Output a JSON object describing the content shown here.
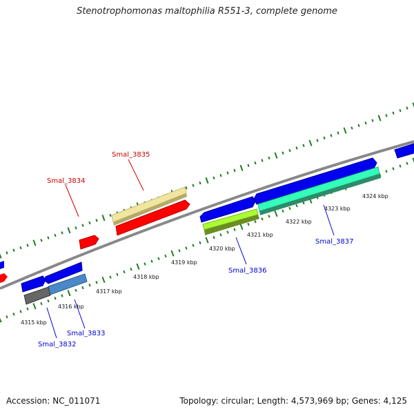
{
  "header": {
    "title": "Stenotrophomonas maltophilia R551-3, complete genome"
  },
  "footer": {
    "accession": "Accession: NC_011071",
    "summary": "Topology: circular; Length: 4,573,969 bp; Genes: 4,125"
  },
  "colors": {
    "backbone": "#8c8c8c",
    "ticks": "#1f7a1f",
    "forward_label": "#cc0000",
    "reverse_label": "#0000cc",
    "red_gene": "#ff0000",
    "blue_gene": "#0000ee",
    "pale_yellow_gene": "#f0e6a0",
    "cyan_gene": "#33ffbb",
    "lime_gene": "#aaff33",
    "steel_blue_gene": "#4a88c8",
    "gray_gene": "#666666"
  },
  "scale_labels": [
    "4315 kbp",
    "4316 kbp",
    "4317 kbp",
    "4318 kbp",
    "4319 kbp",
    "4320 kbp",
    "4321 kbp",
    "4322 kbp",
    "4323 kbp",
    "4324 kbp"
  ],
  "gene_labels": {
    "smal_3832": "Smal_3832",
    "smal_3833": "Smal_3833",
    "smal_3834": "Smal_3834",
    "smal_3835": "Smal_3835",
    "smal_3836": "Smal_3836",
    "smal_3837": "Smal_3837"
  }
}
